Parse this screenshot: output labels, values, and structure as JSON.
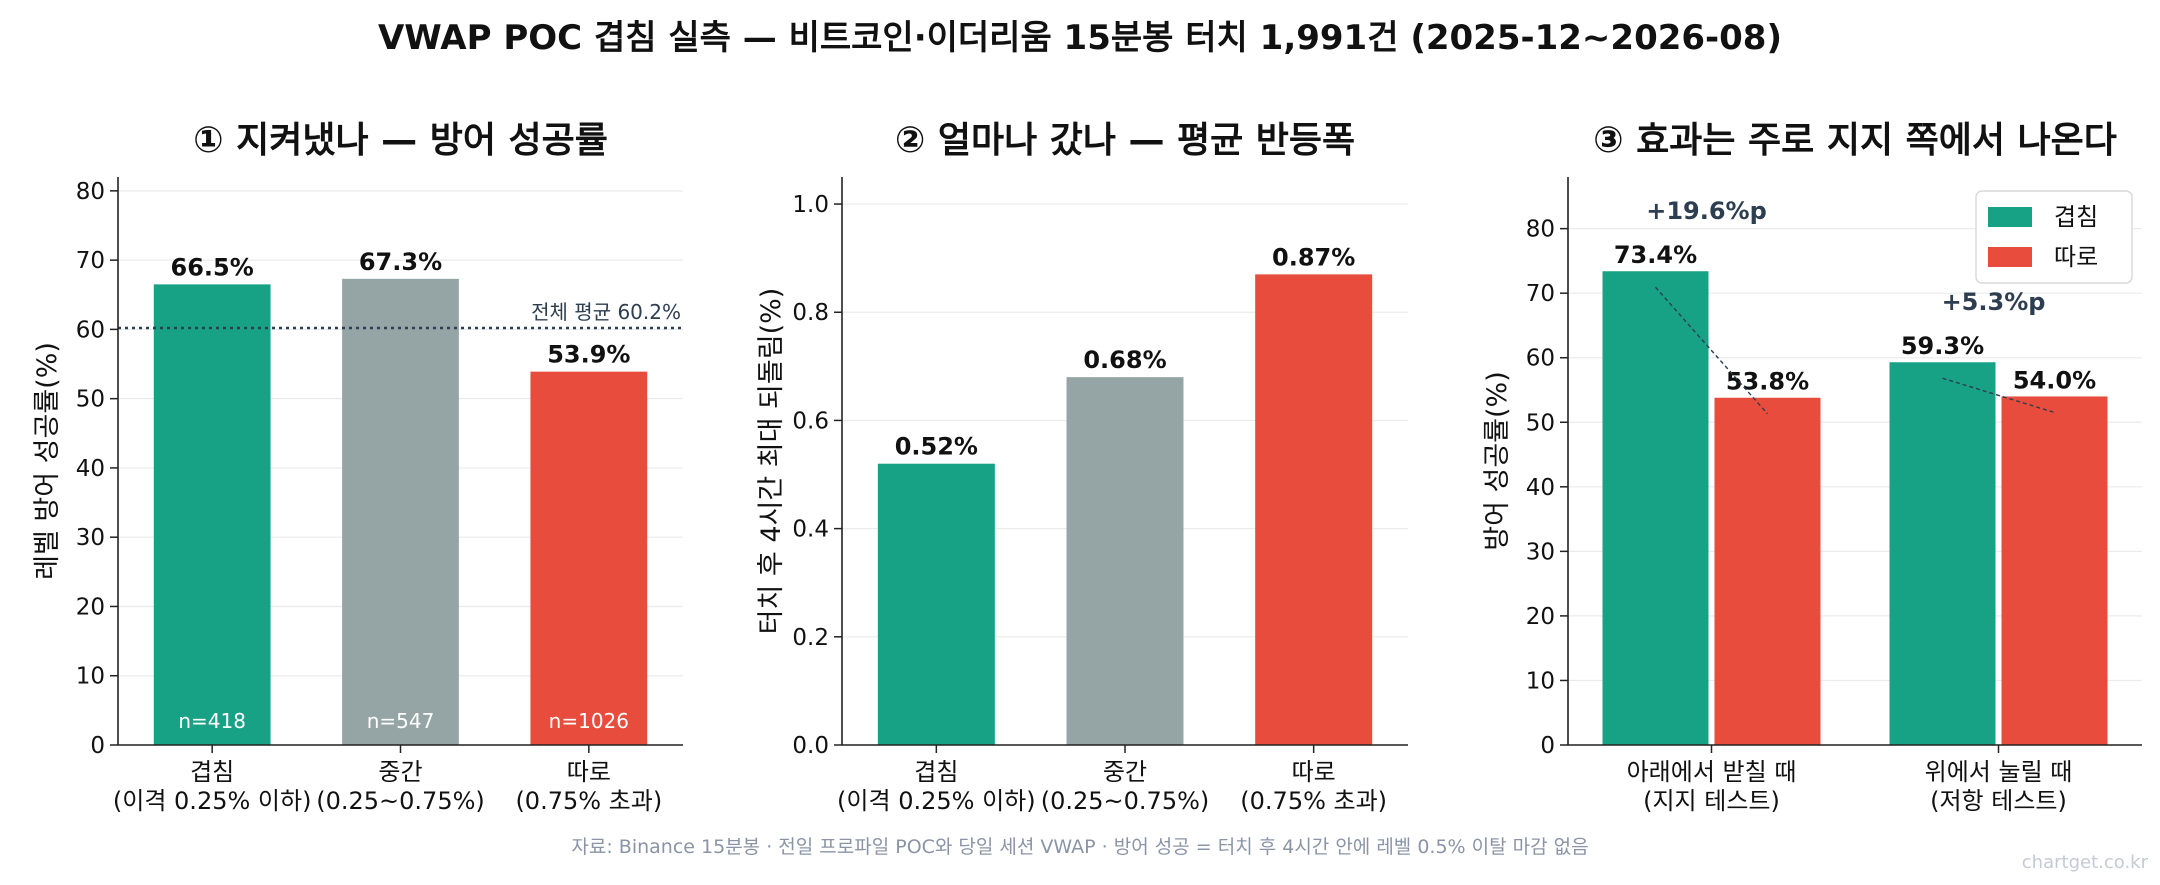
{
  "title": "VWAP POC 겹침 실측 — 비트코인·이더리움 15분봉 터치 1,991건 (2025-12~2026-08)",
  "source": "자료: Binance 15분봉 · 전일 프로파일 POC와 당일 세션 VWAP · 방어 성공 = 터치 후 4시간 안에 레벨 0.5% 이탈 마감 없음",
  "watermark": "chartget.co.kr",
  "colors": {
    "overlap": "#17a185",
    "middle": "#95a5a6",
    "apart": "#e74c3c",
    "annotation": "#2c3e50"
  },
  "chart_data": [
    {
      "type": "bar",
      "title": "① 지켜냈나 — 방어 성공률",
      "ylabel": "레벨 방어 성공률(%)",
      "categories": [
        "겹침\n(이격 0.25% 이하)",
        "중간\n(0.25~0.75%)",
        "따로\n(0.75% 초과)"
      ],
      "values": [
        66.5,
        67.3,
        53.9
      ],
      "value_labels": [
        "66.5%",
        "67.3%",
        "53.9%"
      ],
      "counts": [
        "n=418",
        "n=547",
        "n=1026"
      ],
      "ylim": [
        0,
        82
      ],
      "yticks": [
        0,
        10,
        20,
        30,
        40,
        50,
        60,
        70,
        80
      ],
      "reference_line": {
        "value": 60.2,
        "label": "전체 평균 60.2%"
      },
      "grid": true
    },
    {
      "type": "bar",
      "title": "② 얼마나 갔나 — 평균 반등폭",
      "ylabel": "터치 후 4시간 최대 되돌림(%)",
      "categories": [
        "겹침\n(이격 0.25% 이하)",
        "중간\n(0.25~0.75%)",
        "따로\n(0.75% 초과)"
      ],
      "values": [
        0.52,
        0.68,
        0.87
      ],
      "value_labels": [
        "0.52%",
        "0.68%",
        "0.87%"
      ],
      "ylim": [
        0,
        1.05
      ],
      "yticks": [
        0.0,
        0.2,
        0.4,
        0.6,
        0.8,
        1.0
      ],
      "ytick_labels": [
        "0.0",
        "0.2",
        "0.4",
        "0.6",
        "0.8",
        "1.0"
      ],
      "grid": true
    },
    {
      "type": "bar",
      "title": "③ 효과는 주로 지지 쪽에서 나온다",
      "ylabel": "방어 성공률(%)",
      "categories": [
        "아래에서 받칠 때\n(지지 테스트)",
        "위에서 눌릴 때\n(저항 테스트)"
      ],
      "series": [
        {
          "name": "겹침",
          "values": [
            73.4,
            59.3
          ],
          "value_labels": [
            "73.4%",
            "59.3%"
          ]
        },
        {
          "name": "따로",
          "values": [
            53.8,
            54.0
          ],
          "value_labels": [
            "53.8%",
            "54.0%"
          ]
        }
      ],
      "differences": [
        "+19.6%p",
        "+5.3%p"
      ],
      "ylim": [
        0,
        88
      ],
      "yticks": [
        0,
        10,
        20,
        30,
        40,
        50,
        60,
        70,
        80
      ],
      "legend": "top-right",
      "grid": true
    }
  ]
}
